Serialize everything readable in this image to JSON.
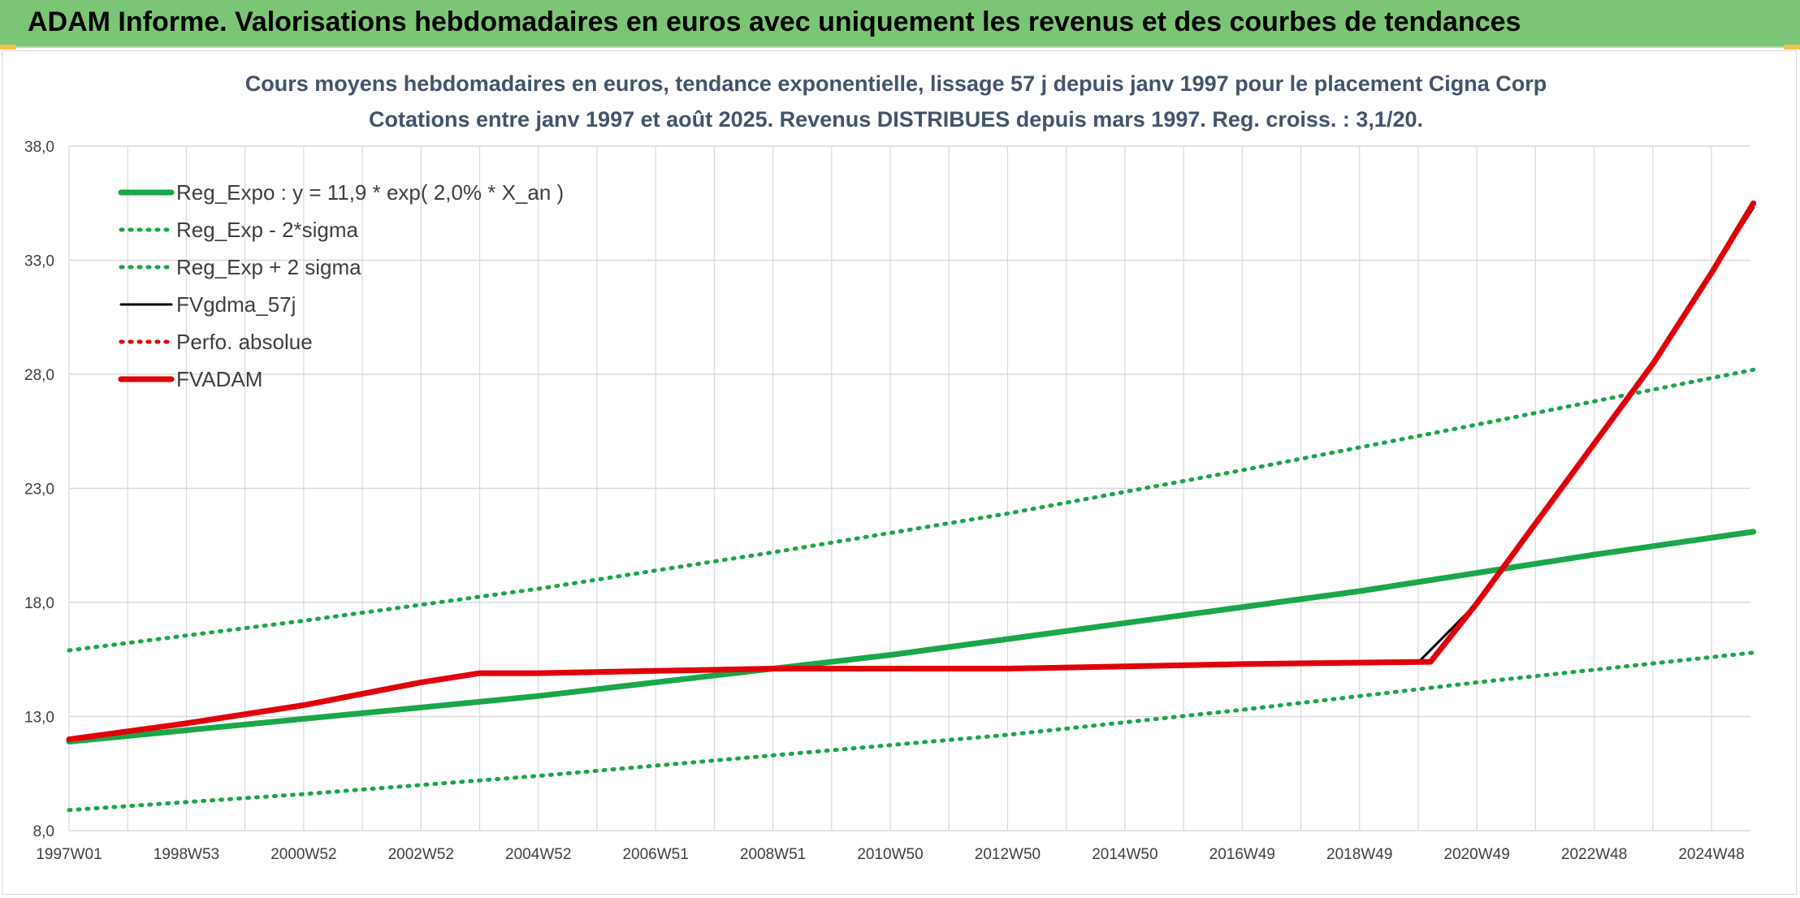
{
  "header": {
    "title": "ADAM Informe. Valorisations hebdomadaires en euros avec uniquement les revenus et des courbes de tendances"
  },
  "colors": {
    "header_bg": "#7cc576",
    "reg_green": "#1aa64a",
    "perf_red": "#e0000a",
    "fvg_black": "#000000",
    "grid": "#d9d9d9",
    "title_color": "#44546a"
  },
  "chart_data": {
    "type": "line",
    "title": "Cours moyens hebdomadaires en euros, tendance exponentielle, lissage 57 j depuis janv 1997 pour le placement Cigna Corp",
    "subtitle": "Cotations entre janv 1997 et août 2025. Revenus DISTRIBUES depuis mars 1997. Reg. croiss. : 3,1/20.",
    "xlabel": "",
    "ylabel": "",
    "ylim": [
      8.0,
      38.0
    ],
    "yticks": [
      "8,0",
      "13,0",
      "18,0",
      "23,0",
      "28,0",
      "33,0",
      "38,0"
    ],
    "xticks": [
      "1997W01",
      "1998W53",
      "2000W52",
      "2002W52",
      "2004W52",
      "2006W51",
      "2008W51",
      "2010W50",
      "2012W50",
      "2014W50",
      "2016W49",
      "2018W49",
      "2020W49",
      "2022W48",
      "2024W48"
    ],
    "grid": true,
    "legend_position": "top-left",
    "series": [
      {
        "name": "Reg_Expo : y = 11,9 * exp( 2,0% *  X_an )",
        "style": "solid-thick",
        "color": "#1aa64a",
        "x": [
          1997.0,
          1999.0,
          2001.0,
          2003.0,
          2005.0,
          2007.0,
          2009.0,
          2011.0,
          2013.0,
          2015.0,
          2017.0,
          2019.0,
          2021.0,
          2023.0,
          2025.7
        ],
        "y": [
          11.9,
          12.4,
          12.9,
          13.4,
          13.9,
          14.5,
          15.1,
          15.7,
          16.4,
          17.1,
          17.8,
          18.5,
          19.3,
          20.1,
          21.1
        ]
      },
      {
        "name": "Reg_Exp - 2*sigma",
        "style": "dotted",
        "color": "#1aa64a",
        "x": [
          1997.0,
          2001.0,
          2005.0,
          2009.0,
          2013.0,
          2017.0,
          2021.0,
          2025.7
        ],
        "y": [
          8.9,
          9.6,
          10.4,
          11.3,
          12.2,
          13.3,
          14.5,
          15.8
        ]
      },
      {
        "name": "Reg_Exp + 2 sigma",
        "style": "dotted",
        "color": "#1aa64a",
        "x": [
          1997.0,
          2001.0,
          2005.0,
          2009.0,
          2013.0,
          2017.0,
          2021.0,
          2025.7
        ],
        "y": [
          15.9,
          17.2,
          18.6,
          20.2,
          21.9,
          23.8,
          25.8,
          28.2
        ]
      },
      {
        "name": "FVgdma_57j",
        "style": "solid",
        "color": "#000000",
        "x": [
          1997.0,
          1999.0,
          2001.0,
          2003.0,
          2004.0,
          2005.0,
          2009.0,
          2013.0,
          2017.0,
          2020.0,
          2021.0,
          2022.0,
          2023.0,
          2024.0,
          2025.0,
          2025.7
        ],
        "y": [
          12.0,
          12.7,
          13.5,
          14.5,
          14.9,
          14.9,
          15.1,
          15.1,
          15.3,
          15.4,
          18.0,
          21.5,
          25.0,
          28.5,
          32.5,
          35.3
        ]
      },
      {
        "name": "Perfo. absolue",
        "style": "dotted",
        "color": "#e0000a",
        "x": [
          1997.0,
          1999.0,
          2001.0,
          2003.0,
          2004.0,
          2005.0,
          2009.0,
          2013.0,
          2017.0,
          2020.2,
          2021.0,
          2022.0,
          2023.0,
          2024.0,
          2025.0,
          2025.7
        ],
        "y": [
          12.0,
          12.7,
          13.5,
          14.5,
          14.9,
          14.9,
          15.1,
          15.1,
          15.3,
          15.4,
          18.0,
          21.5,
          25.0,
          28.5,
          32.5,
          35.5
        ]
      },
      {
        "name": "FVADAM",
        "style": "solid-thick",
        "color": "#e0000a",
        "x": [
          1997.0,
          1999.0,
          2001.0,
          2003.0,
          2004.0,
          2005.0,
          2009.0,
          2013.0,
          2017.0,
          2020.2,
          2021.0,
          2022.0,
          2023.0,
          2024.0,
          2025.0,
          2025.7
        ],
        "y": [
          12.0,
          12.7,
          13.5,
          14.5,
          14.9,
          14.9,
          15.1,
          15.1,
          15.3,
          15.4,
          18.0,
          21.5,
          25.0,
          28.5,
          32.5,
          35.5
        ]
      }
    ]
  }
}
